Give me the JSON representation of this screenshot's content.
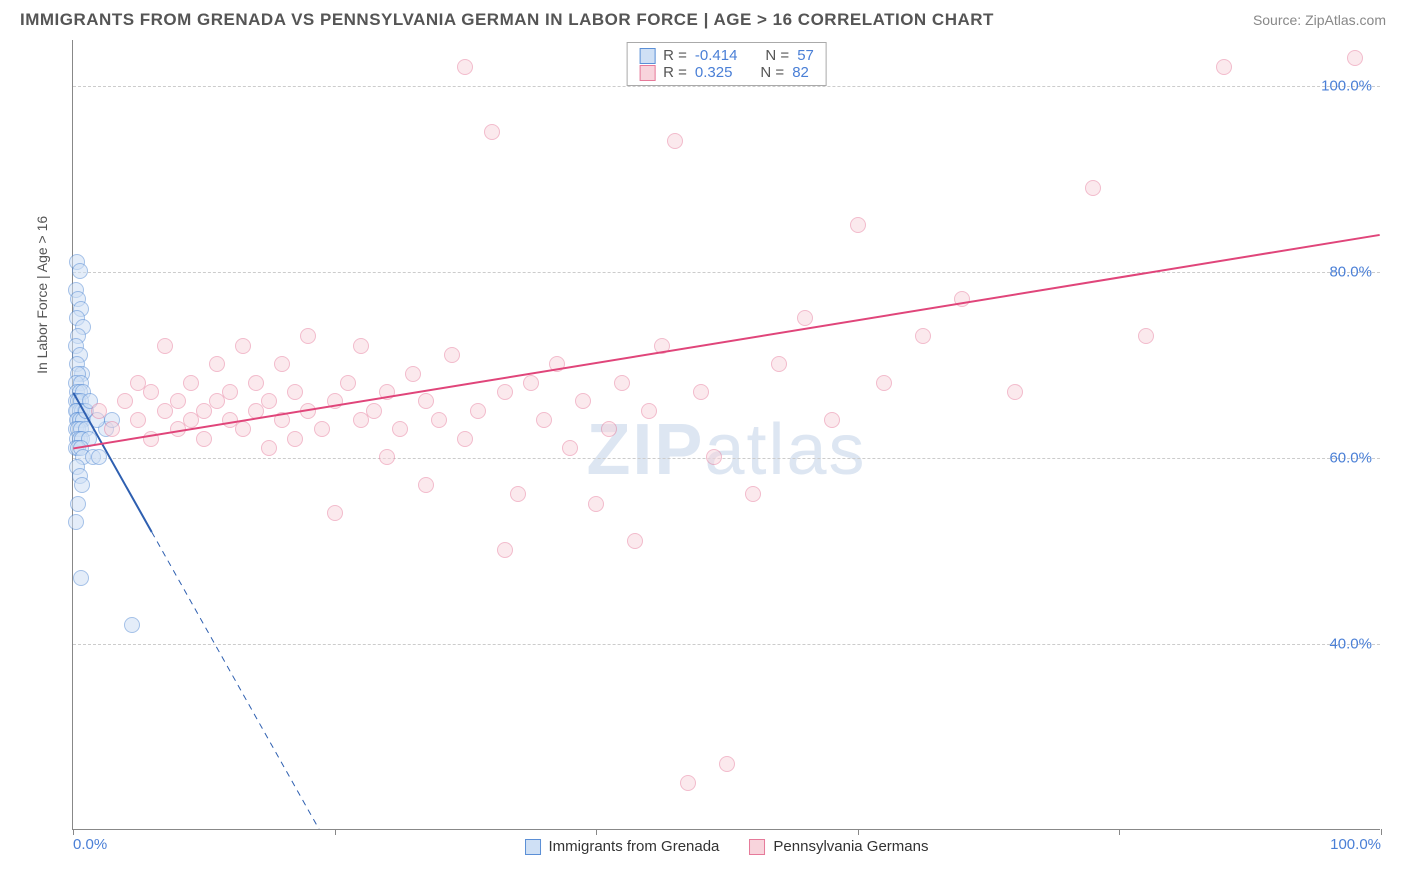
{
  "title": "IMMIGRANTS FROM GRENADA VS PENNSYLVANIA GERMAN IN LABOR FORCE | AGE > 16 CORRELATION CHART",
  "source": "Source: ZipAtlas.com",
  "y_axis_label": "In Labor Force | Age > 16",
  "watermark": {
    "bold": "ZIP",
    "rest": "atlas"
  },
  "chart": {
    "type": "scatter",
    "xlim": [
      0,
      100
    ],
    "ylim": [
      20,
      105
    ],
    "x_ticks": [
      0,
      20,
      40,
      60,
      80,
      100
    ],
    "x_tick_labels": [
      "0.0%",
      "",
      "",
      "",
      "",
      "100.0%"
    ],
    "y_ticks": [
      40,
      60,
      80,
      100
    ],
    "y_tick_labels": [
      "40.0%",
      "60.0%",
      "80.0%",
      "100.0%"
    ],
    "grid_color": "#cccccc",
    "background_color": "#ffffff",
    "marker_radius": 8,
    "marker_stroke_width": 1.2,
    "series": [
      {
        "name": "Immigrants from Grenada",
        "fill": "#cfe0f5",
        "stroke": "#5b8fd6",
        "fill_opacity": 0.55,
        "stats": {
          "R": "-0.414",
          "N": "57"
        },
        "points": [
          [
            0.3,
            81
          ],
          [
            0.5,
            80
          ],
          [
            0.2,
            78
          ],
          [
            0.4,
            77
          ],
          [
            0.6,
            76
          ],
          [
            0.3,
            75
          ],
          [
            0.8,
            74
          ],
          [
            0.4,
            73
          ],
          [
            0.2,
            72
          ],
          [
            0.5,
            71
          ],
          [
            0.3,
            70
          ],
          [
            0.7,
            69
          ],
          [
            0.4,
            69
          ],
          [
            0.2,
            68
          ],
          [
            0.6,
            68
          ],
          [
            0.3,
            67
          ],
          [
            0.5,
            67
          ],
          [
            0.8,
            67
          ],
          [
            0.2,
            66
          ],
          [
            0.4,
            66
          ],
          [
            0.6,
            66
          ],
          [
            0.3,
            65
          ],
          [
            0.5,
            65
          ],
          [
            0.7,
            65
          ],
          [
            0.9,
            65
          ],
          [
            0.2,
            65
          ],
          [
            0.4,
            64
          ],
          [
            0.6,
            64
          ],
          [
            0.3,
            64
          ],
          [
            0.5,
            64
          ],
          [
            0.8,
            64
          ],
          [
            0.2,
            63
          ],
          [
            0.4,
            63
          ],
          [
            0.6,
            63
          ],
          [
            1.0,
            63
          ],
          [
            0.3,
            62
          ],
          [
            0.5,
            62
          ],
          [
            0.7,
            62
          ],
          [
            1.2,
            62
          ],
          [
            0.2,
            61
          ],
          [
            0.4,
            61
          ],
          [
            0.6,
            61
          ],
          [
            0.8,
            60
          ],
          [
            1.5,
            60
          ],
          [
            2.0,
            60
          ],
          [
            0.3,
            59
          ],
          [
            0.5,
            58
          ],
          [
            0.7,
            57
          ],
          [
            2.5,
            63
          ],
          [
            3.0,
            64
          ],
          [
            0.4,
            55
          ],
          [
            0.2,
            53
          ],
          [
            1.0,
            65
          ],
          [
            1.3,
            66
          ],
          [
            0.6,
            47
          ],
          [
            4.5,
            42
          ],
          [
            1.8,
            64
          ]
        ],
        "regression": {
          "x1": 0,
          "y1": 67,
          "x2": 6,
          "y2": 52,
          "dash_to_x": 20,
          "dash_to_y": 17,
          "stroke": "#2e5fb0",
          "width": 2
        }
      },
      {
        "name": "Pennsylvania Germans",
        "fill": "#f8d4dc",
        "stroke": "#e67a9a",
        "fill_opacity": 0.5,
        "stats": {
          "R": "0.325",
          "N": "82"
        },
        "points": [
          [
            2,
            65
          ],
          [
            3,
            63
          ],
          [
            4,
            66
          ],
          [
            5,
            64
          ],
          [
            5,
            68
          ],
          [
            6,
            62
          ],
          [
            6,
            67
          ],
          [
            7,
            65
          ],
          [
            7,
            72
          ],
          [
            8,
            63
          ],
          [
            8,
            66
          ],
          [
            9,
            64
          ],
          [
            9,
            68
          ],
          [
            10,
            62
          ],
          [
            10,
            65
          ],
          [
            11,
            66
          ],
          [
            11,
            70
          ],
          [
            12,
            64
          ],
          [
            12,
            67
          ],
          [
            13,
            63
          ],
          [
            13,
            72
          ],
          [
            14,
            65
          ],
          [
            14,
            68
          ],
          [
            15,
            61
          ],
          [
            15,
            66
          ],
          [
            16,
            64
          ],
          [
            16,
            70
          ],
          [
            17,
            62
          ],
          [
            17,
            67
          ],
          [
            18,
            65
          ],
          [
            18,
            73
          ],
          [
            19,
            63
          ],
          [
            20,
            66
          ],
          [
            20,
            54
          ],
          [
            21,
            68
          ],
          [
            22,
            64
          ],
          [
            22,
            72
          ],
          [
            23,
            65
          ],
          [
            24,
            60
          ],
          [
            24,
            67
          ],
          [
            25,
            63
          ],
          [
            26,
            69
          ],
          [
            27,
            57
          ],
          [
            27,
            66
          ],
          [
            28,
            64
          ],
          [
            29,
            71
          ],
          [
            30,
            62
          ],
          [
            30,
            102
          ],
          [
            31,
            65
          ],
          [
            32,
            95
          ],
          [
            33,
            67
          ],
          [
            33,
            50
          ],
          [
            34,
            56
          ],
          [
            35,
            68
          ],
          [
            36,
            64
          ],
          [
            37,
            70
          ],
          [
            38,
            61
          ],
          [
            39,
            66
          ],
          [
            40,
            55
          ],
          [
            41,
            63
          ],
          [
            42,
            68
          ],
          [
            43,
            51
          ],
          [
            44,
            65
          ],
          [
            45,
            72
          ],
          [
            46,
            94
          ],
          [
            47,
            25
          ],
          [
            48,
            67
          ],
          [
            49,
            60
          ],
          [
            50,
            27
          ],
          [
            52,
            56
          ],
          [
            54,
            70
          ],
          [
            56,
            75
          ],
          [
            58,
            64
          ],
          [
            60,
            85
          ],
          [
            62,
            68
          ],
          [
            65,
            73
          ],
          [
            68,
            77
          ],
          [
            72,
            67
          ],
          [
            78,
            89
          ],
          [
            82,
            73
          ],
          [
            88,
            102
          ],
          [
            98,
            103
          ]
        ],
        "regression": {
          "x1": 0,
          "y1": 61,
          "x2": 100,
          "y2": 84,
          "stroke": "#e0457a",
          "width": 2
        }
      }
    ]
  },
  "legend_bottom": [
    {
      "label": "Immigrants from Grenada",
      "fill": "#cfe0f5",
      "stroke": "#5b8fd6"
    },
    {
      "label": "Pennsylvania Germans",
      "fill": "#f8d4dc",
      "stroke": "#e67a9a"
    }
  ]
}
